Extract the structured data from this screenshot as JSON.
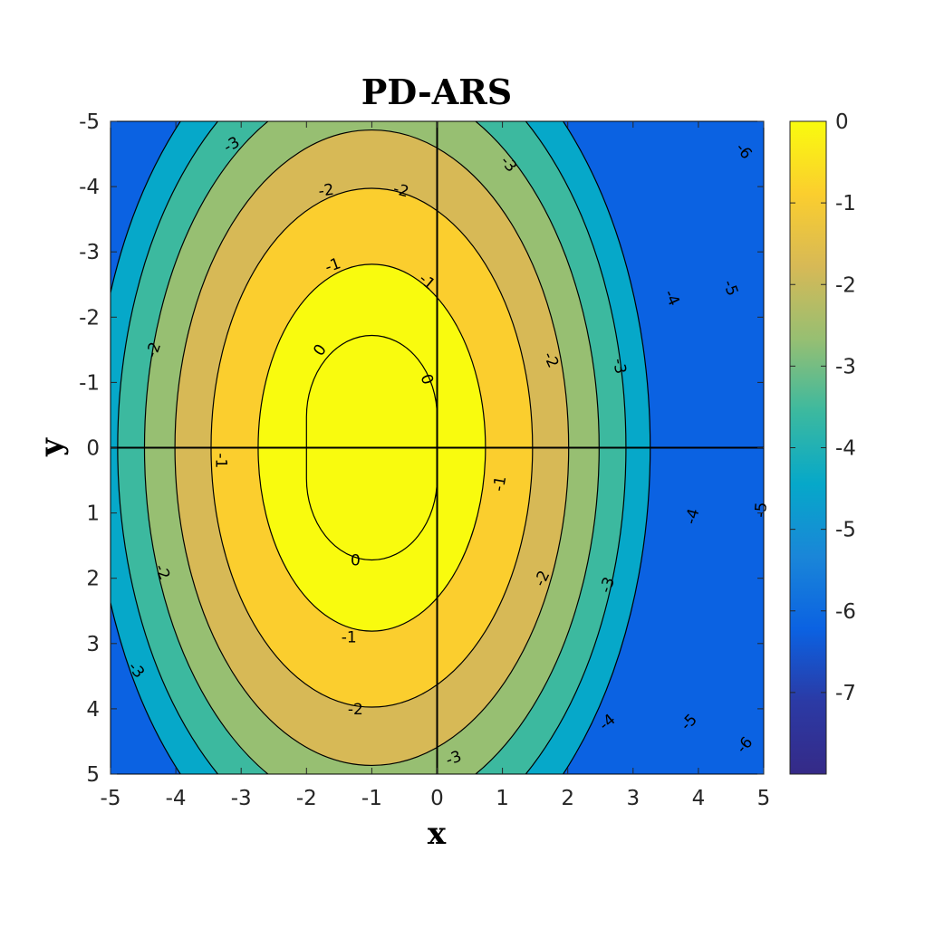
{
  "chart_data": {
    "type": "contour",
    "title": "PD-ARS",
    "xlabel": "x",
    "ylabel": "y",
    "xlim": [
      -5,
      5
    ],
    "ylim": [
      -5,
      5
    ],
    "y_axis_reversed": true,
    "x_ticks": [
      "-5",
      "-4",
      "-3",
      "-2",
      "-1",
      "0",
      "1",
      "2",
      "3",
      "4",
      "5"
    ],
    "y_ticks": [
      "-5",
      "-4",
      "-3",
      "-2",
      "-1",
      "0",
      "1",
      "2",
      "3",
      "4",
      "5"
    ],
    "field": {
      "description": "elliptic contours centered at (-1, 0); level = -(dx/a)^2 - (dy/b)^2",
      "center": [
        -1,
        0
      ],
      "a": 1.74,
      "b": 2.81
    },
    "levels": [
      0,
      -1,
      -2,
      -3,
      -4,
      -5,
      -6
    ],
    "contour_labels": [
      {
        "text": "0",
        "x": -1.8,
        "y": -1.5,
        "rot": -55
      },
      {
        "text": "0",
        "x": -0.15,
        "y": -1.05,
        "rot": 70
      },
      {
        "text": "0",
        "x": -1.25,
        "y": 1.72,
        "rot": 0
      },
      {
        "text": "-1",
        "x": -1.6,
        "y": -2.8,
        "rot": -20
      },
      {
        "text": "-1",
        "x": -0.15,
        "y": -2.55,
        "rot": 40
      },
      {
        "text": "-1",
        "x": -3.3,
        "y": 0.2,
        "rot": 90
      },
      {
        "text": "-1",
        "x": 0.95,
        "y": 0.55,
        "rot": -80
      },
      {
        "text": "-1",
        "x": -1.35,
        "y": 2.9,
        "rot": 0
      },
      {
        "text": "-2",
        "x": -1.7,
        "y": -3.95,
        "rot": -8
      },
      {
        "text": "-2",
        "x": -0.55,
        "y": -3.95,
        "rot": 15
      },
      {
        "text": "-2",
        "x": -4.35,
        "y": -1.5,
        "rot": -70
      },
      {
        "text": "-2",
        "x": 1.75,
        "y": -1.35,
        "rot": 65
      },
      {
        "text": "-2",
        "x": -4.2,
        "y": 1.9,
        "rot": 65
      },
      {
        "text": "-2",
        "x": 1.6,
        "y": 2.0,
        "rot": -65
      },
      {
        "text": "-2",
        "x": -1.25,
        "y": 4.0,
        "rot": 0
      },
      {
        "text": "-3",
        "x": -3.15,
        "y": -4.65,
        "rot": -30
      },
      {
        "text": "-3",
        "x": 1.1,
        "y": -4.35,
        "rot": 50
      },
      {
        "text": "-3",
        "x": 2.8,
        "y": -1.25,
        "rot": 80
      },
      {
        "text": "-3",
        "x": 2.6,
        "y": 2.1,
        "rot": -70
      },
      {
        "text": "-3",
        "x": -4.6,
        "y": 3.4,
        "rot": 50
      },
      {
        "text": "-3",
        "x": 0.25,
        "y": 4.75,
        "rot": -20
      },
      {
        "text": "-4",
        "x": 3.6,
        "y": -2.3,
        "rot": 65
      },
      {
        "text": "-4",
        "x": 3.9,
        "y": 1.05,
        "rot": -75
      },
      {
        "text": "-4",
        "x": 2.6,
        "y": 4.2,
        "rot": -40
      },
      {
        "text": "-5",
        "x": 4.5,
        "y": -2.45,
        "rot": 70
      },
      {
        "text": "-5",
        "x": 4.95,
        "y": 0.95,
        "rot": -85
      },
      {
        "text": "-5",
        "x": 3.85,
        "y": 4.2,
        "rot": -45
      },
      {
        "text": "-6",
        "x": 4.7,
        "y": -4.55,
        "rot": 50
      },
      {
        "text": "-6",
        "x": 4.7,
        "y": 4.55,
        "rot": -50
      }
    ],
    "colorbar": {
      "min": -8,
      "max": 0,
      "ticks": [
        "0",
        "-1",
        "-2",
        "-3",
        "-4",
        "-5",
        "-6",
        "-7"
      ],
      "colors": [
        "#f9fb0e",
        "#fbce2e",
        "#d7b956",
        "#97bf72",
        "#3cb99f",
        "#06a8c9",
        "#1a86d8",
        "#0b62e2",
        "#2b3aa5",
        "#352a87"
      ]
    },
    "grid": false
  }
}
